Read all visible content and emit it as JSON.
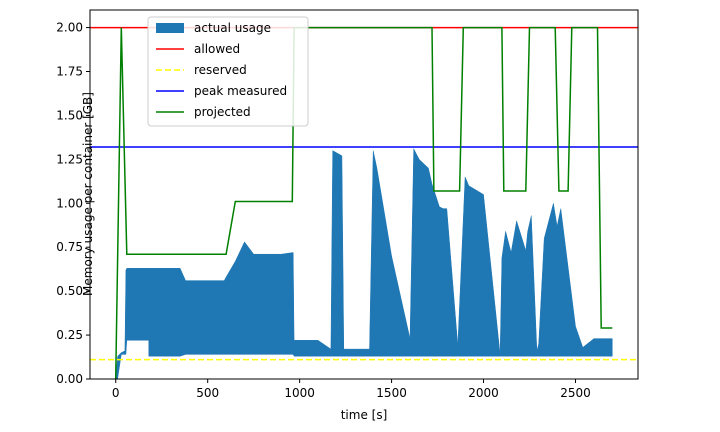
{
  "chart_data": {
    "type": "area",
    "xlabel": "time [s]",
    "ylabel": "Memory usage per container [GB]",
    "xlim": [
      -140,
      2840
    ],
    "ylim": [
      0,
      2.1
    ],
    "x_ticks": [
      0,
      500,
      1000,
      1500,
      2000,
      2500
    ],
    "x_tick_labels": [
      "0",
      "500",
      "1000",
      "1500",
      "2000",
      "2500"
    ],
    "y_ticks": [
      0,
      0.25,
      0.5,
      0.75,
      1.0,
      1.25,
      1.5,
      1.75,
      2.0
    ],
    "y_tick_labels": [
      "0.00",
      "0.25",
      "0.50",
      "0.75",
      "1.00",
      "1.25",
      "1.50",
      "1.75",
      "2.00"
    ],
    "grid": false,
    "legend_position": "top-left",
    "series": [
      {
        "name": "actual usage",
        "kind": "fill",
        "color": "#1f77b4",
        "x": [
          0,
          10,
          30,
          30,
          50,
          55,
          60,
          180,
          180,
          350,
          380,
          380,
          450,
          590,
          600,
          650,
          700,
          750,
          900,
          965,
          970,
          980,
          1000,
          1100,
          1170,
          1180,
          1230,
          1240,
          1300,
          1380,
          1400,
          1420,
          1500,
          1600,
          1620,
          1650,
          1700,
          1720,
          1760,
          1780,
          1800,
          1860,
          1900,
          1920,
          2000,
          2090,
          2100,
          2120,
          2150,
          2180,
          2230,
          2240,
          2260,
          2290,
          2300,
          2330,
          2380,
          2400,
          2420,
          2500,
          2540,
          2600,
          2700
        ],
        "lower": [
          0,
          0,
          0.14,
          0.14,
          0.14,
          0.14,
          0.22,
          0.22,
          0.13,
          0.13,
          0.14,
          0.14,
          0.14,
          0.14,
          0.14,
          0.14,
          0.14,
          0.14,
          0.14,
          0.14,
          0.13,
          0.13,
          0.13,
          0.13,
          0.13,
          0.13,
          0.13,
          0.13,
          0.13,
          0.13,
          0.13,
          0.13,
          0.13,
          0.13,
          0.13,
          0.13,
          0.13,
          0.13,
          0.13,
          0.13,
          0.13,
          0.13,
          0.13,
          0.13,
          0.13,
          0.13,
          0.13,
          0.13,
          0.13,
          0.13,
          0.13,
          0.13,
          0.13,
          0.13,
          0.13,
          0.13,
          0.13,
          0.13,
          0.13,
          0.13,
          0.13,
          0.13,
          0.13
        ],
        "upper": [
          0,
          0.13,
          0.15,
          0.15,
          0.16,
          0.62,
          0.63,
          0.63,
          0.63,
          0.63,
          0.56,
          0.56,
          0.56,
          0.56,
          0.58,
          0.67,
          0.78,
          0.71,
          0.71,
          0.72,
          0.22,
          0.22,
          0.22,
          0.22,
          0.17,
          1.3,
          1.27,
          0.17,
          0.17,
          0.17,
          1.3,
          1.2,
          0.7,
          0.23,
          1.31,
          1.25,
          1.2,
          1.11,
          0.98,
          0.97,
          0.97,
          0.19,
          1.15,
          1.1,
          1.05,
          0.14,
          0.69,
          0.84,
          0.72,
          0.9,
          0.73,
          0.84,
          0.93,
          0.16,
          0.2,
          0.8,
          1.0,
          0.87,
          0.97,
          0.3,
          0.18,
          0.23,
          0.23
        ]
      },
      {
        "name": "allowed",
        "kind": "hline",
        "color": "#ff0000",
        "y": 2.0,
        "style": "solid"
      },
      {
        "name": "reserved",
        "kind": "hline",
        "color": "#ffff00",
        "y": 0.11,
        "style": "dashed"
      },
      {
        "name": "peak measured",
        "kind": "hline",
        "color": "#0000ff",
        "y": 1.32,
        "style": "solid"
      },
      {
        "name": "projected",
        "kind": "line",
        "color": "#008000",
        "x": [
          0,
          30,
          60,
          600,
          650,
          960,
          970,
          1720,
          1730,
          1870,
          1890,
          2100,
          2110,
          2230,
          2250,
          2390,
          2410,
          2460,
          2480,
          2620,
          2640,
          2700
        ],
        "y": [
          0.0,
          2.0,
          0.71,
          0.71,
          1.01,
          1.01,
          2.0,
          2.0,
          1.07,
          1.07,
          2.0,
          2.0,
          1.07,
          1.07,
          2.0,
          2.0,
          1.07,
          1.07,
          2.0,
          2.0,
          0.29,
          0.29
        ]
      }
    ]
  }
}
